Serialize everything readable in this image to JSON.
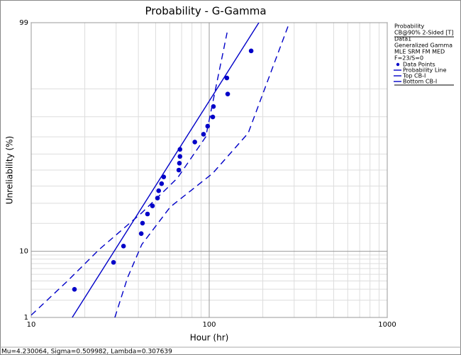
{
  "chart_data": {
    "type": "probability",
    "title": "Probability - G-Gamma",
    "x_label": "Hour (hr)",
    "y_label": "Unreliability (%)",
    "x_scale": "log",
    "y_scale": "probability",
    "xlim": [
      10,
      1000
    ],
    "xticks": [
      10,
      100,
      1000
    ],
    "ylim": [
      1,
      99
    ],
    "yticks": [
      1,
      10,
      99
    ],
    "grid": true,
    "legend_header": [
      "Probability",
      "CB@90% 2-Sided [T]",
      "Data1",
      "Generalized Gamma",
      "MLE SRM FM MED",
      "F=23/S=0"
    ],
    "series": [
      {
        "name": "Data Points",
        "kind": "points",
        "color": "#0000c8",
        "x": [
          17.5,
          29,
          33,
          41.5,
          42.2,
          45,
          48,
          51.2,
          52,
          54,
          55.5,
          67.5,
          68,
          68.5,
          68.5,
          83,
          92.9,
          98,
          104.7,
          105.6,
          127,
          125.6,
          172
        ],
        "values": [
          2.99,
          7.26,
          11.5,
          15.8,
          20.1,
          24.4,
          28.6,
          32.9,
          37.2,
          41.5,
          45.7,
          50.0,
          54.3,
          58.5,
          62.8,
          67.1,
          71.4,
          75.6,
          79.9,
          84.2,
          88.5,
          92.7,
          97.0
        ]
      },
      {
        "name": "Probability Line",
        "kind": "line",
        "color": "#0000c8",
        "x": [
          17,
          190
        ],
        "values": [
          1,
          99
        ]
      },
      {
        "name": "Top CB-I",
        "kind": "dashed",
        "color": "#0000c8",
        "x": [
          10,
          16,
          24.1,
          41.8,
          66.3,
          95.6,
          126
        ],
        "values": [
          1.1,
          4,
          10.5,
          25,
          45,
          70,
          98.5
        ]
      },
      {
        "name": "Bottom CB-I",
        "kind": "dashed",
        "color": "#0000c8",
        "x": [
          29.5,
          34.8,
          41.8,
          60.4,
          104.7,
          165.5,
          282
        ],
        "values": [
          1,
          4.5,
          12,
          28,
          48,
          72,
          99
        ]
      }
    ],
    "footer": "Mu=4.230064, Sigma=0.509982, Lambda=0.307639"
  }
}
